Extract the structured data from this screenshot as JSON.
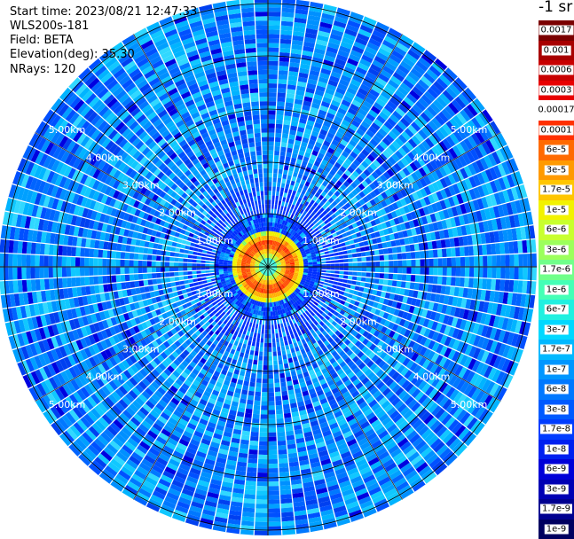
{
  "header": {
    "start_time": "Start time: 2023/08/21 12:47:33",
    "instrument": "WLS200s-181",
    "field": "Field: BETA",
    "elevation": "Elevation(deg): 35.30",
    "nrays": "NRays: 120"
  },
  "colorbar": {
    "unit": "-1 sr",
    "labels": [
      "0.0017",
      "0.001",
      "0.0006",
      "0.0003",
      "0.00017",
      "0.0001",
      "6e-5",
      "3e-5",
      "1.7e-5",
      "1e-5",
      "6e-6",
      "3e-6",
      "1.7e-6",
      "1e-6",
      "6e-7",
      "3e-7",
      "1.7e-7",
      "1e-7",
      "6e-8",
      "3e-8",
      "1.7e-8",
      "1e-8",
      "6e-9",
      "3e-9",
      "1.7e-9",
      "1e-9"
    ],
    "colors": [
      "#7a0000",
      "#a80000",
      "#c80000",
      "#e80000",
      "#ffffff",
      "#ff3000",
      "#ff6a00",
      "#ff9a00",
      "#ffc600",
      "#f2f200",
      "#c8ff2e",
      "#9cff5c",
      "#70ff8a",
      "#44ffb6",
      "#20f0e0",
      "#00d8ff",
      "#00b8ff",
      "#0096ff",
      "#0078ff",
      "#005aff",
      "#003cff",
      "#0020f0",
      "#0000d8",
      "#0000b4",
      "#000090",
      "#000060"
    ]
  },
  "range_rings": {
    "labels": [
      "1.00km",
      "2.00km",
      "3.00km",
      "4.00km",
      "5.00km"
    ],
    "max_km": 5.05
  },
  "map": {
    "rays": 120,
    "gates": 60,
    "colors": {
      "background": "#ffffff",
      "ring_line": "#000000",
      "ray_gap": "#ffffff",
      "core_hot": "#ff2000",
      "core_warm": "#ffd000"
    }
  }
}
